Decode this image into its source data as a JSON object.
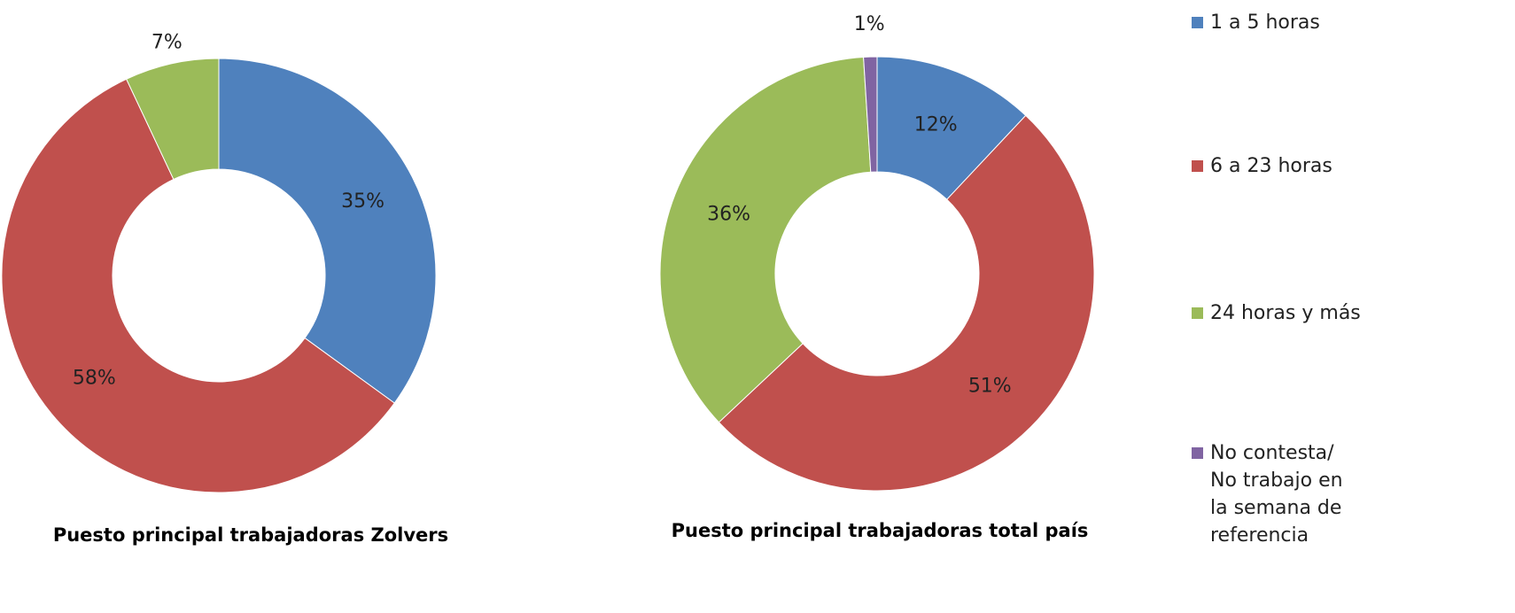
{
  "chart_data": [
    {
      "type": "donut",
      "title": "Puesto principal trabajadoras Zolvers",
      "categories": [
        "1 a 5 horas",
        "6 a 23 horas",
        "24 horas y más"
      ],
      "values": [
        35,
        58,
        7
      ],
      "value_labels": [
        "35%",
        "58%",
        "7%"
      ],
      "colors": [
        "#4f81bd",
        "#c0504d",
        "#9bbb59"
      ]
    },
    {
      "type": "donut",
      "title": "Puesto principal trabajadoras total país",
      "categories": [
        "1 a 5 horas",
        "6 a 23 horas",
        "24 horas y más",
        "No contesta/ No trabajo en la semana de referencia"
      ],
      "values": [
        12,
        51,
        36,
        1
      ],
      "value_labels": [
        "12%",
        "51%",
        "36%",
        "1%"
      ],
      "colors": [
        "#4f81bd",
        "#c0504d",
        "#9bbb59",
        "#8064a2"
      ],
      "legend": "right"
    }
  ]
}
